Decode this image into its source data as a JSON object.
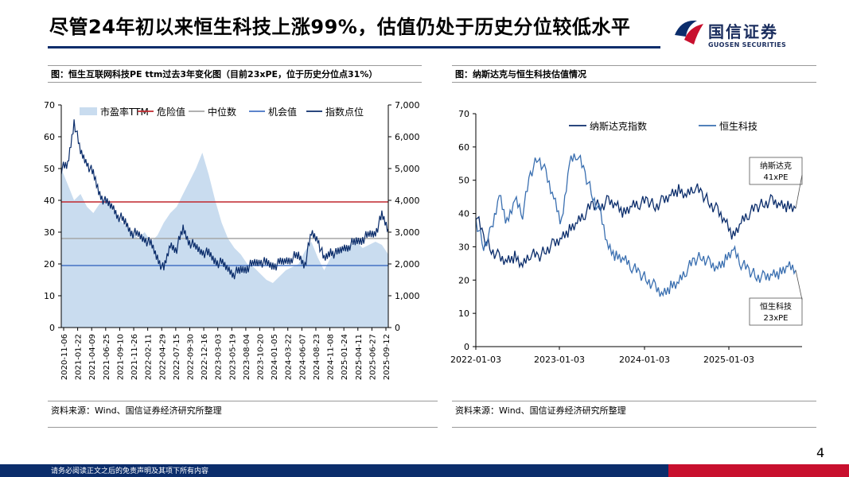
{
  "header": {
    "title": "尽管24年初以来恒生科技上涨99%，估值仍处于历史分位较低水平",
    "logo_cn": "国信证券",
    "logo_en": "GUOSEN SECURITIES",
    "brand_navy": "#0b2d6b",
    "brand_red": "#c8102e"
  },
  "left_panel": {
    "caption": "图：恒生互联网科技PE ttm过去3年变化图（目前23xPE，位于历史分位点31%）",
    "source": "资料来源：Wind、国信证券经济研究所整理"
  },
  "right_panel": {
    "caption": "图：纳斯达克与恒生科技估值情况",
    "source": "资料来源：Wind、国信证券经济研究所整理"
  },
  "page_number": "4",
  "footer": {
    "disclaimer": "请务必阅读正文之后的免责声明及其项下所有内容"
  },
  "chart_data": [
    {
      "type": "area",
      "title": "恒生互联网科技PE ttm过去3年变化图",
      "x_tick_labels": [
        "2020-11-06",
        "2021-01-22",
        "2021-04-09",
        "2021-06-25",
        "2021-09-10",
        "2021-11-26",
        "2022-02-11",
        "2022-04-29",
        "2022-07-15",
        "2022-09-30",
        "2022-12-16",
        "2023-03-03",
        "2023-05-19",
        "2023-08-04",
        "2023-10-20",
        "2024-01-05",
        "2024-03-22",
        "2024-06-07",
        "2024-08-23",
        "2024-11-08",
        "2025-01-24",
        "2025-04-11",
        "2025-06-27",
        "2025-09-12"
      ],
      "y_left": {
        "ylim": [
          0,
          70
        ],
        "ticks": [
          "0",
          "10",
          "20",
          "30",
          "40",
          "50",
          "60",
          "70"
        ]
      },
      "y_right": {
        "ylim": [
          0,
          7000
        ],
        "ticks": [
          "0",
          "1,000",
          "2,000",
          "3,000",
          "4,000",
          "5,000",
          "6,000",
          "7,000"
        ]
      },
      "legend": [
        "市盈率TTM",
        "危险值",
        "中位数",
        "机会值",
        "指数点位"
      ],
      "reference_lines": {
        "danger": 39.5,
        "median": 28,
        "opportunity": 19.5
      },
      "series": [
        {
          "name": "市盈率TTM",
          "axis": "left",
          "style": "area",
          "color": "#c9dcef",
          "values": [
            50,
            45,
            40,
            42,
            38,
            36,
            39,
            41,
            37,
            34,
            32,
            30,
            28,
            30,
            27,
            29,
            33,
            36,
            38,
            42,
            46,
            50,
            55,
            48,
            40,
            33,
            28,
            25,
            23,
            20,
            19,
            17,
            15,
            14,
            16,
            18,
            19,
            20,
            24,
            27,
            22,
            18,
            22,
            24,
            25,
            26,
            27,
            25,
            26,
            27,
            26,
            23
          ]
        },
        {
          "name": "指数点位",
          "axis": "right",
          "style": "line",
          "color": "#0b2d6b",
          "values": [
            5000,
            5100,
            6500,
            5500,
            5200,
            4800,
            4200,
            3900,
            3800,
            3500,
            3300,
            3000,
            2900,
            2800,
            2600,
            2200,
            1800,
            2600,
            2500,
            3100,
            2700,
            2500,
            2400,
            2300,
            2100,
            2000,
            1850,
            1700,
            1800,
            1900,
            2000,
            2100,
            2000,
            1950,
            2000,
            2100,
            2200,
            2250,
            2000,
            2950,
            2800,
            2100,
            2400,
            2300,
            2500,
            2600,
            2700,
            2800,
            2900,
            3000,
            3500,
            3100
          ]
        },
        {
          "name": "危险值",
          "axis": "left",
          "style": "hline",
          "color": "#c0272d"
        },
        {
          "name": "中位数",
          "axis": "left",
          "style": "hline",
          "color": "#a6a6a6"
        },
        {
          "name": "机会值",
          "axis": "left",
          "style": "hline",
          "color": "#4472c4"
        }
      ]
    },
    {
      "type": "line",
      "title": "纳斯达克与恒生科技估值情况",
      "x_tick_labels": [
        "2022-01-03",
        "2023-01-03",
        "2024-01-03",
        "2025-01-03"
      ],
      "ylim": [
        0,
        70
      ],
      "y_ticks": [
        "0",
        "10",
        "20",
        "30",
        "40",
        "50",
        "60",
        "70"
      ],
      "legend": [
        "纳斯达克指数",
        "恒生科技"
      ],
      "series": [
        {
          "name": "纳斯达克指数",
          "color": "#0b2d6b",
          "values": [
            40,
            33,
            29,
            27,
            26,
            27,
            24,
            28,
            27,
            29,
            31,
            33,
            35,
            37,
            40,
            43,
            42,
            44,
            43,
            40,
            42,
            43,
            44,
            42,
            44,
            46,
            47,
            45,
            48,
            46,
            43,
            41,
            38,
            33,
            37,
            40,
            42,
            43,
            44,
            43,
            42,
            41.5
          ]
        },
        {
          "name": "恒生科技",
          "color": "#3a6fb0",
          "values": [
            38,
            30,
            35,
            46,
            37,
            44,
            40,
            52,
            57,
            52,
            45,
            37,
            55,
            58,
            52,
            45,
            40,
            30,
            27,
            26,
            24,
            22,
            20,
            18,
            16,
            18,
            19,
            23,
            26,
            27,
            25,
            24,
            26,
            29,
            25,
            23,
            21,
            21,
            22,
            22,
            24,
            23
          ]
        }
      ],
      "annotations": [
        {
          "text_line1": "纳斯达克",
          "text_line2": "41xPE"
        },
        {
          "text_line1": "恒生科技",
          "text_line2": "23xPE"
        }
      ]
    }
  ]
}
